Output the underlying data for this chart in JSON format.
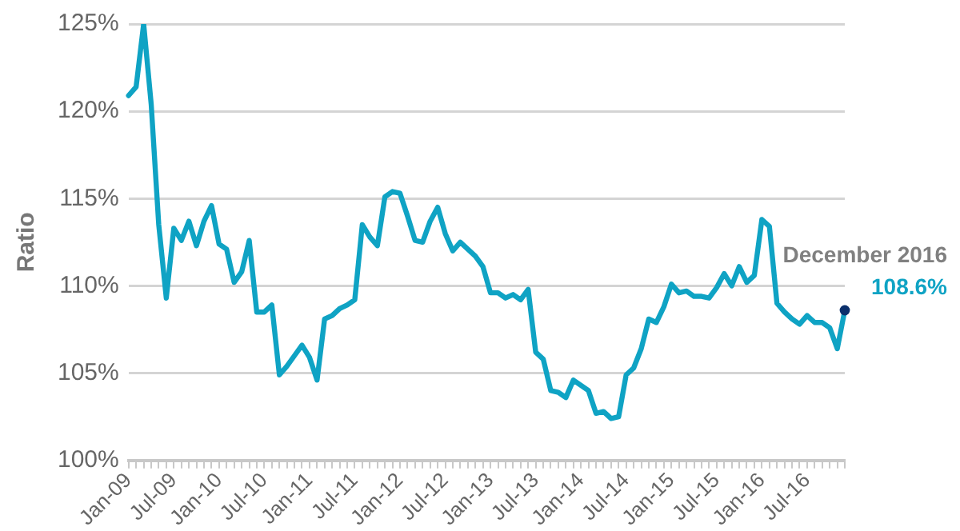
{
  "chart_data": {
    "type": "line",
    "ylabel": "Ratio",
    "categories": [
      "Jan-09",
      null,
      null,
      null,
      null,
      null,
      "Jul-09",
      null,
      null,
      null,
      null,
      null,
      "Jan-10",
      null,
      null,
      null,
      null,
      null,
      "Jul-10",
      null,
      null,
      null,
      null,
      null,
      "Jan-11",
      null,
      null,
      null,
      null,
      null,
      "Jul-11",
      null,
      null,
      null,
      null,
      null,
      "Jan-12",
      null,
      null,
      null,
      null,
      null,
      "Jul-12",
      null,
      null,
      null,
      null,
      null,
      "Jan-13",
      null,
      null,
      null,
      null,
      null,
      "Jul-13",
      null,
      null,
      null,
      null,
      null,
      "Jan-14",
      null,
      null,
      null,
      null,
      null,
      "Jul-14",
      null,
      null,
      null,
      null,
      null,
      "Jan-15",
      null,
      null,
      null,
      null,
      null,
      "Jul-15",
      null,
      null,
      null,
      null,
      null,
      "Jan-16",
      null,
      null,
      null,
      null,
      null,
      "Jul-16",
      null,
      null,
      null,
      null,
      null
    ],
    "series": [
      {
        "color": "#0fa3c4",
        "values": [
          120.9,
          121.4,
          125.0,
          120.4,
          113.5,
          109.3,
          113.3,
          112.6,
          113.7,
          112.3,
          113.7,
          114.6,
          112.4,
          112.1,
          110.2,
          110.8,
          112.6,
          108.5,
          108.5,
          108.9,
          104.9,
          105.4,
          106.0,
          106.6,
          105.9,
          104.6,
          108.1,
          108.3,
          108.7,
          108.9,
          109.2,
          113.5,
          112.8,
          112.3,
          115.1,
          115.4,
          115.3,
          114.0,
          112.6,
          112.5,
          113.7,
          114.5,
          113.0,
          112.0,
          112.5,
          112.1,
          111.7,
          111.1,
          109.6,
          109.6,
          109.3,
          109.5,
          109.2,
          109.8,
          106.2,
          105.8,
          104.0,
          103.9,
          103.6,
          104.6,
          104.3,
          104.0,
          102.7,
          102.8,
          102.4,
          102.5,
          104.9,
          105.3,
          106.4,
          108.1,
          107.9,
          108.8,
          110.1,
          109.6,
          109.7,
          109.4,
          109.4,
          109.3,
          109.9,
          110.7,
          110.0,
          111.1,
          110.2,
          110.6,
          113.8,
          113.4,
          109.0,
          108.5,
          108.1,
          107.8,
          108.3,
          107.9,
          107.9,
          107.6,
          106.4,
          108.6
        ],
        "value_labels": [
          null,
          null,
          null,
          null,
          null,
          null,
          null,
          null,
          null,
          null,
          null,
          null,
          null,
          null,
          null,
          null,
          null,
          null,
          null,
          null,
          null,
          null,
          null,
          null,
          null,
          null,
          null,
          null,
          null,
          null,
          null,
          null,
          null,
          null,
          null,
          null,
          null,
          null,
          null,
          null,
          null,
          null,
          null,
          null,
          null,
          null,
          null,
          null,
          null,
          null,
          null,
          null,
          null,
          null,
          null,
          null,
          null,
          null,
          null,
          null,
          null,
          null,
          null,
          null,
          null,
          null,
          null,
          null,
          null,
          null,
          null,
          null,
          null,
          null,
          null,
          null,
          null,
          null,
          null,
          null,
          null,
          null,
          null,
          null,
          null,
          null,
          null,
          null,
          null,
          null,
          null,
          null,
          null,
          null,
          null,
          "108.6%"
        ]
      }
    ],
    "annotations": [
      "December 2016"
    ],
    "ylim": [
      100,
      125
    ],
    "yticks": [
      {
        "value": 100,
        "label": "100%"
      },
      {
        "value": 105,
        "label": "105%"
      },
      {
        "value": 110,
        "label": "110%"
      },
      {
        "value": 115,
        "label": "115%"
      },
      {
        "value": 120,
        "label": "120%"
      },
      {
        "value": 125,
        "label": "125%"
      }
    ],
    "grid": "y",
    "legend": false,
    "marker": "none",
    "line_style": "solid"
  }
}
